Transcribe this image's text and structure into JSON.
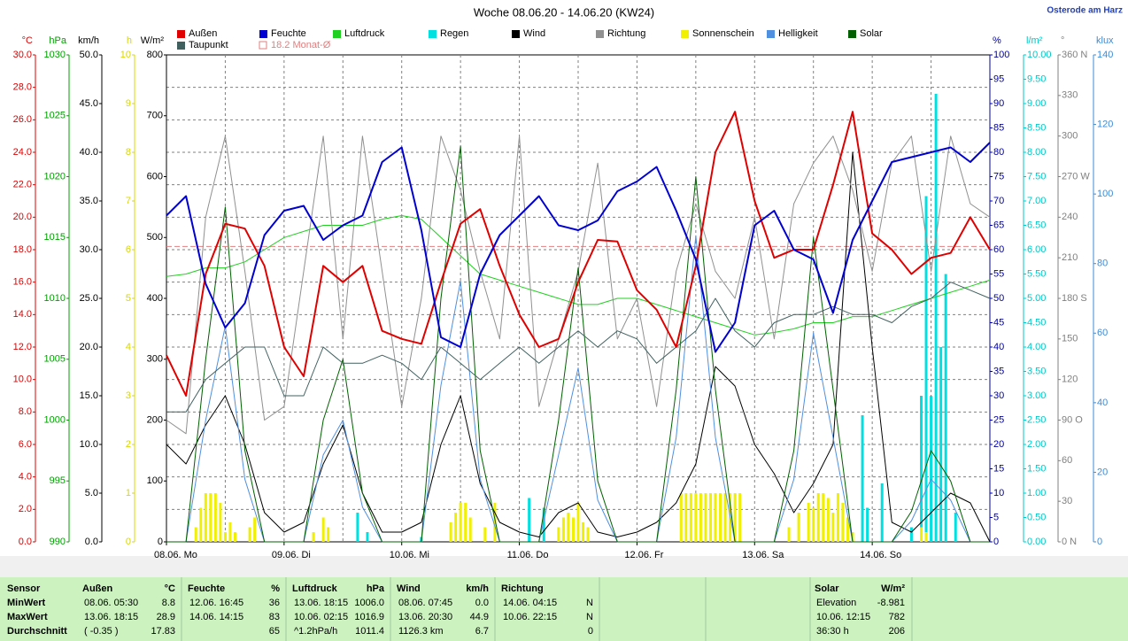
{
  "chart_data": {
    "type": "line",
    "title": "Woche 08.06.20 - 14.06.20 (KW24)",
    "location": "Osterode am Harz",
    "xlim": [
      0,
      168
    ],
    "xticks": [
      {
        "value": 0,
        "label": "08.06.  Mo"
      },
      {
        "value": 24,
        "label": "09.06.  Di"
      },
      {
        "value": 48,
        "label": "10.06.  Mi"
      },
      {
        "value": 72,
        "label": "11.06.  Do"
      },
      {
        "value": 96,
        "label": "12.06.  Fr"
      },
      {
        "value": 120,
        "label": "13.06.  Sa"
      },
      {
        "value": 144,
        "label": "14.06.  So"
      }
    ],
    "xgrid": [
      0,
      12,
      24,
      36,
      48,
      60,
      72,
      84,
      96,
      108,
      120,
      132,
      144,
      156,
      168
    ],
    "axes": [
      {
        "label": "°C",
        "color": "#e00000",
        "grid": true,
        "lim": [
          0,
          30
        ],
        "ticks": [
          {
            "value": 0,
            "label": "0.0"
          },
          {
            "value": 2,
            "label": "2.0"
          },
          {
            "value": 4,
            "label": "4.0"
          },
          {
            "value": 6,
            "label": "6.0"
          },
          {
            "value": 8,
            "label": "8.0"
          },
          {
            "value": 10,
            "label": "10.0"
          },
          {
            "value": 12,
            "label": "12.0"
          },
          {
            "value": 14,
            "label": "14.0"
          },
          {
            "value": 16,
            "label": "16.0"
          },
          {
            "value": 18,
            "label": "18.0"
          },
          {
            "value": 20,
            "label": "20.0"
          },
          {
            "value": 22,
            "label": "22.0"
          },
          {
            "value": 24,
            "label": "24.0"
          },
          {
            "value": 26,
            "label": "26.0"
          },
          {
            "value": 28,
            "label": "28.0"
          },
          {
            "value": 30,
            "label": "30.0"
          }
        ]
      },
      {
        "label": "hPa",
        "color": "#00a000",
        "lim": [
          990,
          1030
        ],
        "ticks": [
          990,
          995,
          1000,
          1005,
          1010,
          1015,
          1020,
          1025,
          1030
        ]
      },
      {
        "label": "km/h",
        "color": "#000000",
        "lim": [
          0,
          50
        ],
        "ticks": [
          {
            "value": 0,
            "label": "0.0"
          },
          {
            "value": 5,
            "label": "5.0"
          },
          {
            "value": 10,
            "label": "10.0"
          },
          {
            "value": 15,
            "label": "15.0"
          },
          {
            "value": 20,
            "label": "20.0"
          },
          {
            "value": 25,
            "label": "25.0"
          },
          {
            "value": 30,
            "label": "30.0"
          },
          {
            "value": 35,
            "label": "35.0"
          },
          {
            "value": 40,
            "label": "40.0"
          },
          {
            "value": 45,
            "label": "45.0"
          },
          {
            "value": 50,
            "label": "50.0"
          }
        ]
      },
      {
        "label": "h",
        "color": "#d8d800",
        "lim": [
          0,
          10
        ],
        "ticks": [
          0,
          1,
          2,
          3,
          4,
          5,
          6,
          7,
          8,
          9,
          10
        ]
      },
      {
        "label": "W/m²",
        "color": "#000000",
        "lim": [
          0,
          800
        ],
        "ticks": [
          0,
          100,
          200,
          300,
          400,
          500,
          600,
          700,
          800
        ]
      },
      {
        "label": "%",
        "color": "#0000a0",
        "lim": [
          0,
          100
        ],
        "ticks": [
          0,
          5,
          10,
          15,
          20,
          25,
          30,
          35,
          40,
          45,
          50,
          55,
          60,
          65,
          70,
          75,
          80,
          85,
          90,
          95,
          100
        ]
      },
      {
        "label": "l/m²",
        "color": "#00c8c8",
        "lim": [
          0,
          10
        ],
        "ticks": [
          {
            "value": 0,
            "label": "0.00"
          },
          {
            "value": 0.5,
            "label": "0.50"
          },
          {
            "value": 1,
            "label": "1.00"
          },
          {
            "value": 1.5,
            "label": "1.50"
          },
          {
            "value": 2,
            "label": "2.00"
          },
          {
            "value": 2.5,
            "label": "2.50"
          },
          {
            "value": 3,
            "label": "3.00"
          },
          {
            "value": 3.5,
            "label": "3.50"
          },
          {
            "value": 4,
            "label": "4.00"
          },
          {
            "value": 4.5,
            "label": "4.50"
          },
          {
            "value": 5,
            "label": "5.00"
          },
          {
            "value": 5.5,
            "label": "5.50"
          },
          {
            "value": 6,
            "label": "6.00"
          },
          {
            "value": 6.5,
            "label": "6.50"
          },
          {
            "value": 7,
            "label": "7.00"
          },
          {
            "value": 7.5,
            "label": "7.50"
          },
          {
            "value": 8,
            "label": "8.00"
          },
          {
            "value": 8.5,
            "label": "8.50"
          },
          {
            "value": 9,
            "label": "9.00"
          },
          {
            "value": 9.5,
            "label": "9.50"
          },
          {
            "value": 10,
            "label": "10.00"
          }
        ]
      },
      {
        "label": "°",
        "color": "#808080",
        "lim": [
          0,
          360
        ],
        "ticks": [
          {
            "value": 0,
            "label": "0 N"
          },
          30,
          60,
          {
            "value": 90,
            "label": "90 O"
          },
          120,
          150,
          {
            "value": 180,
            "label": "180 S"
          },
          210,
          240,
          {
            "value": 270,
            "label": "270 W"
          },
          300,
          330,
          {
            "value": 360,
            "label": "360 N"
          }
        ]
      },
      {
        "label": "klux",
        "color": "#3c8cd8",
        "lim": [
          0,
          140
        ],
        "ticks": [
          0,
          20,
          40,
          60,
          80,
          100,
          120,
          140
        ]
      }
    ],
    "x": [
      0,
      4,
      8,
      12,
      16,
      20,
      24,
      28,
      32,
      36,
      40,
      44,
      48,
      52,
      56,
      60,
      64,
      68,
      72,
      76,
      80,
      84,
      88,
      92,
      96,
      100,
      104,
      108,
      112,
      116,
      120,
      124,
      128,
      132,
      136,
      140,
      144,
      148,
      152,
      156,
      160,
      164,
      168
    ],
    "series": [
      {
        "name": "Außen",
        "color": "#e00000",
        "axis": "°C",
        "width": 2,
        "values": [
          11.5,
          9,
          16.5,
          19.6,
          19.3,
          17,
          12,
          10.2,
          17,
          16,
          17,
          13,
          12.5,
          12.2,
          16,
          19.6,
          20.5,
          17,
          14,
          12,
          12.5,
          16,
          18.6,
          18.5,
          15.5,
          14.3,
          12,
          17,
          24,
          26.5,
          21,
          17.5,
          18,
          18,
          22,
          26.5,
          19,
          18,
          16.5,
          17.5,
          17.8,
          20,
          18
        ]
      },
      {
        "name": "Feuchte",
        "color": "#0000d0",
        "axis": "%",
        "width": 2,
        "values": [
          67,
          71,
          53,
          44,
          49,
          63,
          68,
          69,
          62,
          65,
          67,
          78,
          81,
          64,
          42,
          40,
          55,
          63,
          67,
          71,
          65,
          64,
          66,
          72,
          74,
          77,
          68,
          58,
          39,
          45,
          65,
          68,
          60,
          58,
          47,
          62,
          70,
          78,
          79,
          80,
          81,
          78,
          82
        ]
      },
      {
        "name": "Luftdruck",
        "color": "#20d020",
        "axis": "hPa",
        "width": 1,
        "values": [
          1011.8,
          1012,
          1012.5,
          1012.5,
          1013,
          1014,
          1015,
          1015.5,
          1016,
          1016,
          1016,
          1016.5,
          1016.8,
          1016.5,
          1015,
          1013.5,
          1012,
          1011.5,
          1011,
          1010.5,
          1010,
          1009.5,
          1009.5,
          1010,
          1010,
          1009.5,
          1009,
          1008.5,
          1008,
          1007.5,
          1007,
          1007.2,
          1007.5,
          1008,
          1008,
          1008.5,
          1008.5,
          1009,
          1009.5,
          1010,
          1010.5,
          1011,
          1011.5
        ]
      },
      {
        "name": "Regen",
        "color": "#00e0e0",
        "axis": "l/m²",
        "bars": true,
        "x": [
          39,
          41,
          52,
          74,
          77,
          142,
          143,
          146,
          152,
          154,
          155,
          156,
          157,
          158,
          159,
          161
        ],
        "values": [
          0.6,
          0.2,
          0.1,
          0.9,
          0.7,
          2.6,
          0.7,
          1.2,
          0.3,
          3.0,
          7.1,
          3.0,
          9.2,
          4.0,
          5.5,
          0.6
        ]
      },
      {
        "name": "Wind",
        "color": "#000000",
        "axis": "km/h",
        "width": 1,
        "values": [
          10,
          8,
          12,
          15,
          10,
          3,
          1,
          2,
          8,
          12,
          5,
          1,
          1,
          2,
          10,
          15,
          6,
          2,
          1,
          0.5,
          3,
          4,
          1,
          0.5,
          1,
          2,
          4,
          8,
          18,
          16,
          10,
          7,
          3,
          6,
          10,
          40,
          20,
          2,
          1,
          3,
          5,
          4,
          0
        ]
      },
      {
        "name": "Richtung",
        "color": "#909090",
        "axis": "°",
        "width": 1,
        "values": [
          90,
          80,
          240,
          300,
          200,
          90,
          100,
          200,
          300,
          150,
          300,
          200,
          100,
          180,
          300,
          260,
          200,
          150,
          300,
          100,
          150,
          200,
          280,
          150,
          180,
          100,
          200,
          250,
          200,
          180,
          240,
          150,
          250,
          280,
          300,
          260,
          200,
          280,
          300,
          200,
          300,
          250,
          240
        ]
      },
      {
        "name": "Sonnenschein",
        "color": "#f0f000",
        "axis": "h",
        "bars": true,
        "x": [
          6,
          7,
          8,
          9,
          10,
          11,
          12,
          13,
          14,
          17,
          18,
          30,
          32,
          33,
          58,
          59,
          60,
          61,
          62,
          65,
          67,
          80,
          81,
          82,
          83,
          84,
          85,
          86,
          105,
          106,
          107,
          108,
          109,
          110,
          111,
          112,
          113,
          114,
          115,
          116,
          117,
          127,
          129,
          131,
          132,
          133,
          134,
          135,
          136,
          137,
          138,
          139,
          140,
          154,
          155
        ],
        "values": [
          0.3,
          0.7,
          1,
          1,
          1,
          0.8,
          0.2,
          0.4,
          0.2,
          0.3,
          0.5,
          0.2,
          0.5,
          0.3,
          0.4,
          0.6,
          0.8,
          0.8,
          0.5,
          0.3,
          0.8,
          0.3,
          0.5,
          0.6,
          0.5,
          0.8,
          0.4,
          0.3,
          1,
          1,
          1,
          1,
          1,
          1,
          1,
          1,
          1,
          1,
          1,
          1,
          1,
          0.3,
          0.6,
          0.8,
          0.7,
          1,
          1,
          0.9,
          0.6,
          1,
          0.8,
          0.5,
          0.2,
          0.3,
          0.2
        ]
      },
      {
        "name": "Helligkeit",
        "color": "#5090e0",
        "axis": "klux",
        "width": 1,
        "values": [
          0,
          0,
          35,
          62,
          18,
          0,
          0,
          0,
          25,
          35,
          10,
          0,
          0,
          0,
          45,
          75,
          18,
          0,
          0,
          0,
          25,
          50,
          12,
          0,
          0,
          0,
          30,
          88,
          30,
          0,
          0,
          0,
          18,
          60,
          30,
          0,
          0,
          0,
          6,
          18,
          12,
          0,
          0
        ]
      },
      {
        "name": "Solar",
        "color": "#006000",
        "axis": "W/m²",
        "width": 1,
        "values": [
          0,
          0,
          300,
          550,
          150,
          0,
          0,
          0,
          200,
          300,
          80,
          0,
          0,
          0,
          400,
          650,
          150,
          0,
          0,
          0,
          200,
          450,
          100,
          0,
          0,
          0,
          250,
          600,
          250,
          0,
          0,
          0,
          150,
          500,
          250,
          0,
          0,
          0,
          50,
          150,
          100,
          0,
          0
        ]
      },
      {
        "name": "Taupunkt",
        "color": "#406060",
        "axis": "°C",
        "width": 1,
        "values": [
          8,
          8,
          10,
          11,
          12,
          12,
          9,
          9,
          12,
          11,
          11,
          11.5,
          11,
          10,
          12,
          11,
          10,
          11,
          12,
          11,
          12,
          13,
          12,
          13,
          12.5,
          11,
          12,
          13,
          15,
          13,
          12,
          13.5,
          14,
          14,
          14.5,
          14,
          14,
          13.5,
          14.5,
          15,
          16,
          15.5,
          15
        ]
      }
    ],
    "reference": {
      "label": "18.2 Monat-Ø",
      "value": 18.2,
      "axis": "°C",
      "color": "#e08080"
    },
    "table": {
      "columns": [
        {
          "header": "Sensor",
          "rows": [
            [
              "MinWert"
            ],
            [
              "MaxWert"
            ],
            [
              "Durchschnitt"
            ]
          ]
        },
        {
          "header": "Außen",
          "unit": "°C",
          "rows": [
            [
              "08.06.  05:30",
              "8.8"
            ],
            [
              "13.06.  18:15",
              "28.9"
            ],
            [
              "( -0.35 )",
              "17.83"
            ]
          ]
        },
        {
          "header": "Feuchte",
          "unit": "%",
          "rows": [
            [
              "12.06.  16:45",
              "36"
            ],
            [
              "14.06.  14:15",
              "83"
            ],
            [
              "65"
            ]
          ]
        },
        {
          "header": "Luftdruck",
          "unit": "hPa",
          "rows": [
            [
              "13.06.  18:15",
              "1006.0"
            ],
            [
              "10.06.  02:15",
              "1016.9"
            ],
            [
              "^1.2hPa/h",
              "1011.4"
            ]
          ]
        },
        {
          "header": "Wind",
          "unit": "km/h",
          "rows": [
            [
              "08.06.  07:45",
              "0.0"
            ],
            [
              "13.06.  20:30",
              "44.9"
            ],
            [
              "1126.3 km",
              "6.7"
            ]
          ]
        },
        {
          "header": "Richtung",
          "rows": [
            [
              "14.06.  04:15",
              "N"
            ],
            [
              "10.06.  22:15",
              "N"
            ],
            [
              "0"
            ]
          ]
        },
        {
          "header": "Solar",
          "unit": "W/m²",
          "rows": [
            [
              "Elevation",
              "-8.981"
            ],
            [
              "10.06.  12:15",
              "782"
            ],
            [
              "36:30 h",
              "206"
            ]
          ]
        }
      ]
    }
  }
}
